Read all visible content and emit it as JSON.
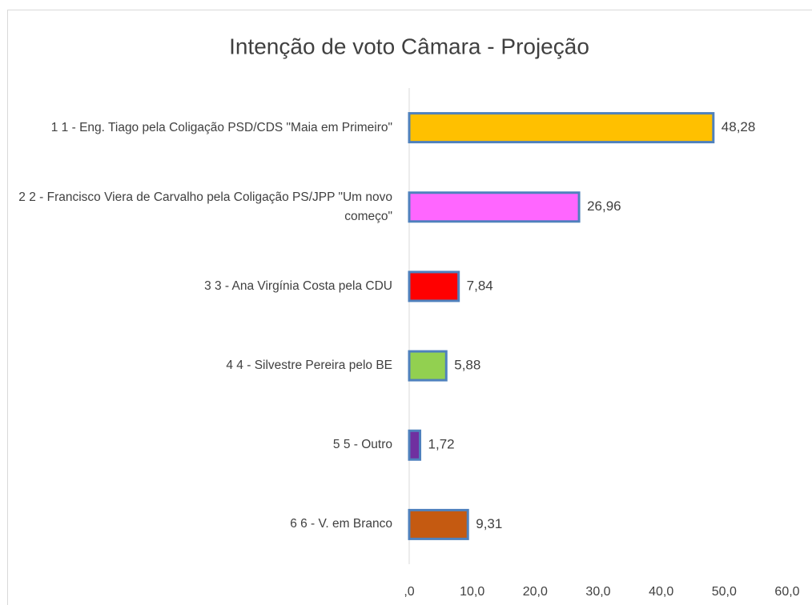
{
  "chart_data": {
    "type": "bar",
    "orientation": "horizontal",
    "title": "Intenção de voto Câmara - Projeção",
    "categories": [
      "1 1 - Eng. Tiago pela Coligação PSD/CDS \"Maia em Primeiro\"",
      "2 2 - Francisco Viera de Carvalho pela Coligação PS/JPP \"Um novo começo\"",
      "3 3 - Ana Virgínia Costa pela CDU",
      "4 4 - Silvestre Pereira pelo BE",
      "5 5 - Outro",
      "6 6 - V. em Branco"
    ],
    "values": [
      48.28,
      26.96,
      7.84,
      5.88,
      1.72,
      9.31
    ],
    "value_labels": [
      "48,28",
      "26,96",
      "7,84",
      "5,88",
      "1,72",
      "9,31"
    ],
    "colors": [
      "#ffc000",
      "#ff66ff",
      "#ff0000",
      "#92d050",
      "#7030a0",
      "#c55a11"
    ],
    "border_color": "#4f81bd",
    "xlim": [
      0,
      60
    ],
    "xticks": [
      {
        "value": 0,
        "label": ",0"
      },
      {
        "value": 10,
        "label": "10,0"
      },
      {
        "value": 20,
        "label": "20,0"
      },
      {
        "value": 30,
        "label": "30,0"
      },
      {
        "value": 40,
        "label": "40,0"
      },
      {
        "value": 50,
        "label": "50,0"
      },
      {
        "value": 60,
        "label": "60,0"
      }
    ],
    "grid": false
  }
}
